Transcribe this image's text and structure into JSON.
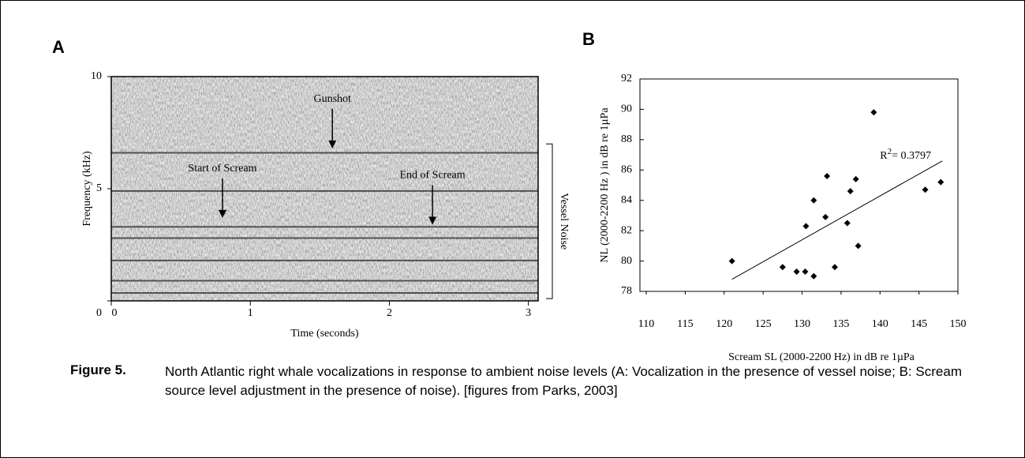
{
  "chart_data": [
    {
      "type": "spectrogram",
      "label": "A",
      "xlabel": "Time (seconds)",
      "ylabel": "Frequency (kHz)",
      "xlim": [
        0,
        3.07
      ],
      "xticks": [
        0,
        1,
        2,
        3
      ],
      "ylim": [
        0,
        10
      ],
      "yticks": [
        0,
        5,
        10
      ],
      "noise_bands": [
        0.35,
        0.9,
        1.8,
        2.8,
        3.3,
        4.9,
        6.6
      ],
      "annotations": [
        {
          "text": "Gunshot",
          "x": 1.59,
          "y": 6.8
        },
        {
          "text": "Start of Scream",
          "x": 0.8,
          "y": 3.7
        },
        {
          "text": "End of Scream",
          "x": 2.31,
          "y": 3.4
        }
      ],
      "bracket": {
        "text": "Vessel Noise",
        "from": 0.1,
        "to": 7.0
      }
    },
    {
      "type": "scatter",
      "label": "B",
      "xlabel": "Scream SL (2000-2200 Hz) in dB re 1µPa",
      "ylabel": "NL (2000-2200 Hz ) in dB re 1µPa",
      "x": [
        121,
        127.5,
        129.3,
        130.4,
        131.5,
        130.5,
        131.5,
        133.0,
        133.2,
        134.2,
        135.8,
        136.2,
        136.9,
        137.2,
        139.2,
        145.8,
        147.8
      ],
      "values": [
        80.0,
        79.6,
        79.3,
        79.3,
        79.0,
        82.3,
        84.0,
        82.9,
        85.6,
        79.6,
        82.5,
        84.6,
        85.4,
        81.0,
        89.8,
        84.7,
        85.2
      ],
      "color": "#000000",
      "trendline": {
        "x": [
          121,
          148
        ],
        "values": [
          78.8,
          86.6
        ]
      },
      "annotation": {
        "parts": [
          "R",
          "2",
          "= 0.3797"
        ],
        "x": 140,
        "y": 86.9
      },
      "xlim": [
        110,
        150
      ],
      "xticks": [
        110,
        115,
        120,
        125,
        130,
        135,
        140,
        145,
        150
      ],
      "ylim": [
        78,
        92
      ],
      "yticks": [
        78,
        80,
        82,
        84,
        86,
        88,
        90,
        92
      ]
    }
  ],
  "caption": {
    "label": "Figure 5.",
    "text": "North Atlantic right whale vocalizations in response to ambient noise levels (A: Vocalization in the presence of vessel noise; B: Scream source level adjustment in the presence of noise).  [figures from Parks, 2003]"
  }
}
